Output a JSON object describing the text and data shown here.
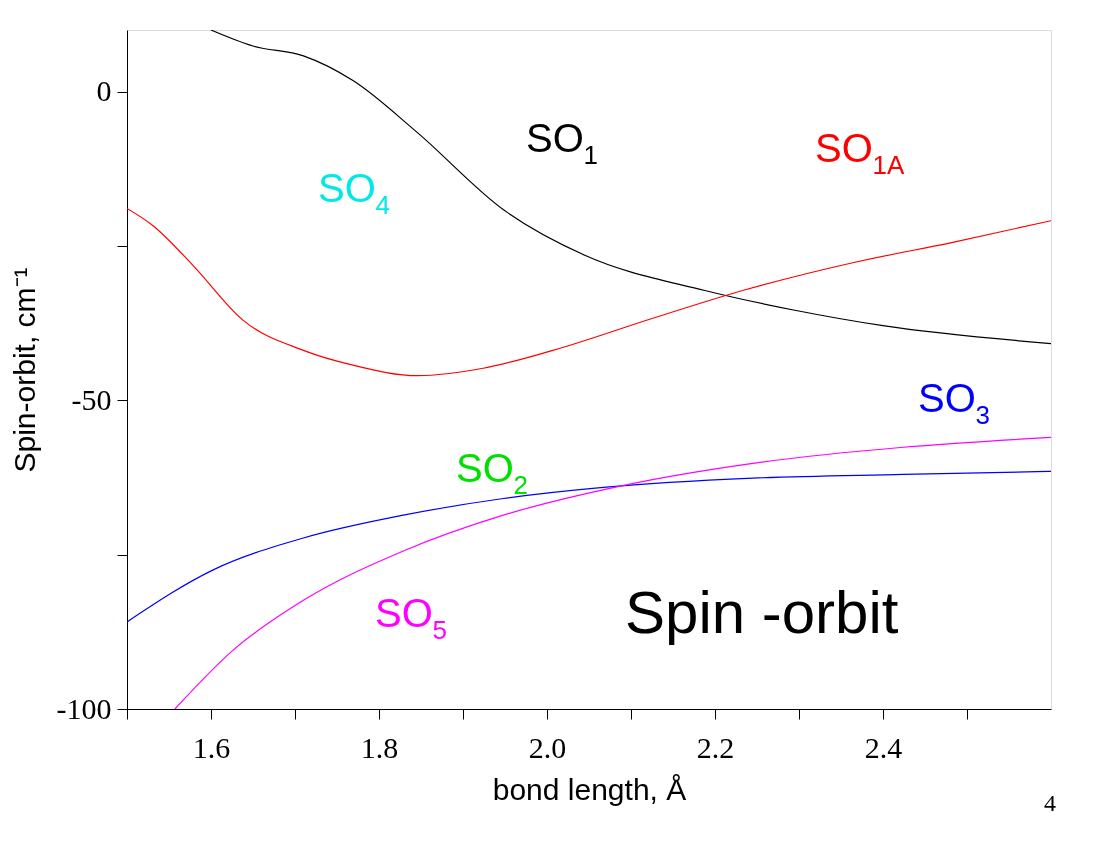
{
  "chart_data": {
    "type": "line",
    "xlabel": "bond length, Å",
    "ylabel": "Spin-orbit, cm⁻¹",
    "xlim": [
      1.5,
      2.6
    ],
    "ylim": [
      -100,
      10
    ],
    "xticks": [
      {
        "value": 1.5,
        "label": null
      },
      {
        "value": 1.6,
        "label": "1.6"
      },
      {
        "value": 1.7,
        "label": null
      },
      {
        "value": 1.8,
        "label": "1.8"
      },
      {
        "value": 1.9,
        "label": null
      },
      {
        "value": 2.0,
        "label": "2.0"
      },
      {
        "value": 2.1,
        "label": null
      },
      {
        "value": 2.2,
        "label": "2.2"
      },
      {
        "value": 2.3,
        "label": null
      },
      {
        "value": 2.4,
        "label": "2.4"
      },
      {
        "value": 2.5,
        "label": null
      }
    ],
    "yticks": [
      -100,
      {
        "value": -75,
        "label": null
      },
      -50,
      {
        "value": -25,
        "label": null
      },
      0
    ],
    "grid": false,
    "marker": "none",
    "line_style": "solid",
    "series": [
      {
        "name": "SO$_{1}$",
        "color": "#000000",
        "x": [
          1.6,
          1.65,
          1.71,
          1.769,
          1.843,
          1.95,
          2.045,
          2.188,
          2.295,
          2.4,
          2.6
        ],
        "values": [
          10,
          7.4,
          5.8,
          1.8,
          -6.3,
          -19.3,
          -26.5,
          -32.2,
          -35.4,
          -37.9,
          -40.8
        ]
      },
      {
        "name": "SO$_{1A}$",
        "color": "#ff0000",
        "x": [
          1.5,
          1.531,
          1.579,
          1.638,
          1.71,
          1.769,
          1.846,
          1.924,
          2.007,
          2.126,
          2.233,
          2.364,
          2.483,
          2.6
        ],
        "values": [
          -18.9,
          -21.7,
          -28.2,
          -37,
          -41.9,
          -44.3,
          -46,
          -44.8,
          -41.9,
          -36.7,
          -32.2,
          -27.7,
          -24.4,
          -20.9
        ]
      },
      {
        "name": "SO$_{3}$",
        "color": "#0000ff",
        "x": [
          1.5,
          1.602,
          1.71,
          1.829,
          1.948,
          2.067,
          2.245,
          2.424,
          2.6
        ],
        "values": [
          -85.9,
          -77.5,
          -72.3,
          -68.6,
          -65.9,
          -64.1,
          -62.6,
          -62,
          -61.5
        ]
      },
      {
        "name": "SO$_{5}$",
        "color": "#ff00ff",
        "x": [
          1.557,
          1.626,
          1.71,
          1.829,
          1.948,
          2.09,
          2.245,
          2.424,
          2.6
        ],
        "values": [
          -100,
          -90.5,
          -82.4,
          -74.4,
          -68.6,
          -63.8,
          -60.2,
          -57.6,
          -56
        ]
      }
    ],
    "annotations": [
      "SO$_{2}$",
      "SO$_{4}$",
      "Spin -orbit",
      "4"
    ]
  }
}
